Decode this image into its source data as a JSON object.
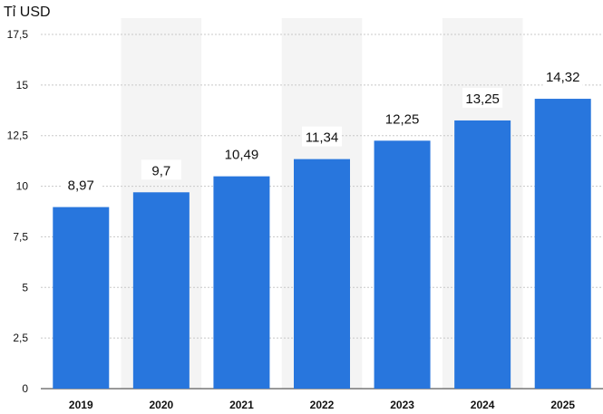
{
  "chart_data": {
    "type": "bar",
    "title": "",
    "unit_label": "Tỉ USD",
    "xlabel": "",
    "ylabel": "",
    "categories": [
      "2019",
      "2020",
      "2021",
      "2022",
      "2023",
      "2024",
      "2025"
    ],
    "values": [
      8.97,
      9.7,
      10.49,
      11.34,
      12.25,
      13.25,
      14.32
    ],
    "value_labels": [
      "8,97",
      "9,7",
      "10,49",
      "11,34",
      "12,25",
      "13,25",
      "14,32"
    ],
    "ylim": [
      0,
      17.5
    ],
    "yticks": [
      0,
      2.5,
      5,
      7.5,
      10,
      12.5,
      15,
      17.5
    ],
    "ytick_labels": [
      "0",
      "2,5",
      "5",
      "7,5",
      "10",
      "12,5",
      "15",
      "17,5"
    ],
    "grid": true,
    "bar_color": "#2876dd",
    "alt_band_color": "#f4f4f4",
    "grid_color": "#c8c8c8"
  }
}
